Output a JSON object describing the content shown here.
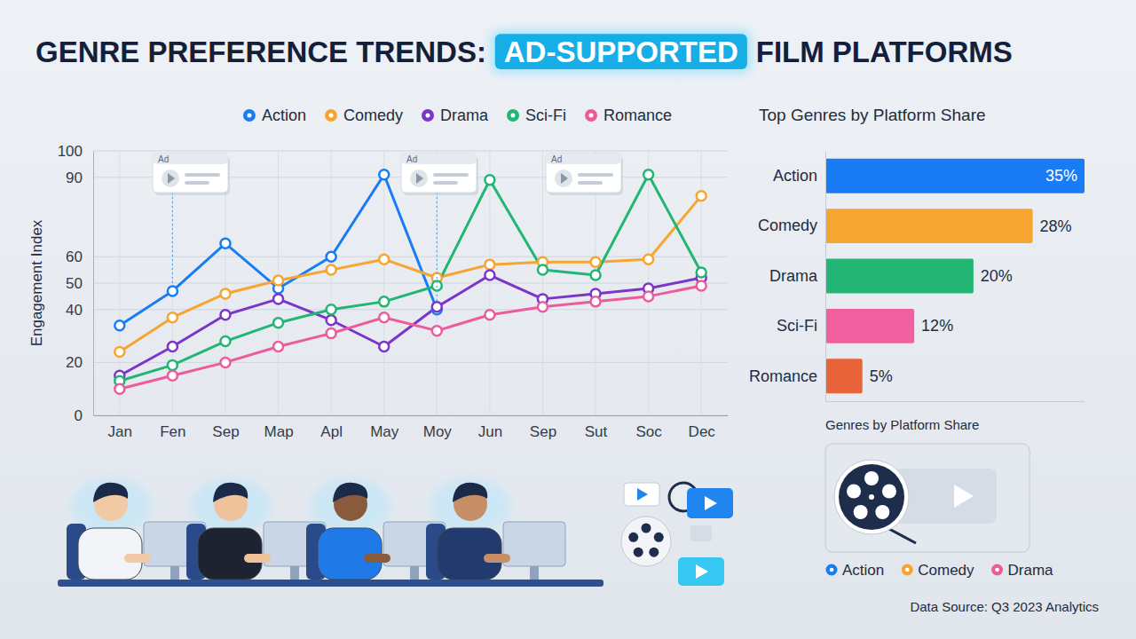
{
  "header": {
    "title": "GENRE PREFERENCE TRENDS:",
    "highlight": "AD-SUPPORTED",
    "title_end": "FILM PLATFORMS"
  },
  "chart_data": [
    {
      "type": "line",
      "y_label": "Engagement Index",
      "categories": [
        "Jan",
        "Fen",
        "Sep",
        "Map",
        "Apl",
        "May",
        "Moy",
        "Jun",
        "Sep",
        "Sut",
        "Soc",
        "Dec"
      ],
      "series": [
        {
          "name": "Action",
          "color": "#1a7cf5",
          "values": [
            34,
            47,
            65,
            48,
            60,
            91,
            40,
            null,
            null,
            null,
            null,
            null
          ]
        },
        {
          "name": "Comedy",
          "color": "#f6a530",
          "values": [
            24,
            37,
            46,
            51,
            55,
            59,
            52,
            57,
            58,
            58,
            59,
            83
          ]
        },
        {
          "name": "Drama",
          "color": "#7b35c9",
          "values": [
            15,
            26,
            38,
            44,
            36,
            26,
            41,
            53,
            44,
            46,
            48,
            52
          ]
        },
        {
          "name": "Sci-Fi",
          "color": "#22b573",
          "values": [
            13,
            19,
            28,
            35,
            40,
            43,
            49,
            89,
            55,
            53,
            91,
            54
          ]
        },
        {
          "name": "Romance",
          "color": "#ec5c9c",
          "values": [
            10,
            15,
            20,
            26,
            31,
            37,
            32,
            38,
            41,
            43,
            45,
            49
          ]
        }
      ],
      "ylim": [
        0,
        100
      ],
      "yticks": [
        0,
        20,
        40,
        50,
        60,
        90,
        100
      ],
      "grid": true,
      "legend": "top",
      "marker": "circle"
    },
    {
      "type": "bar",
      "title": "Top Genres by Platform Share",
      "orientation": "horizontal",
      "categories": [
        "Action",
        "Comedy",
        "Drama",
        "Sci-Fi",
        "Romance"
      ],
      "values": [
        35,
        28,
        20,
        12,
        5
      ],
      "value_labels": [
        "35%",
        "28%",
        "20%",
        "12%",
        "5%"
      ],
      "colors": [
        "#1a7cf5",
        "#f6a530",
        "#22b573",
        "#f0609e",
        "#e8623a"
      ],
      "data_labels": true,
      "xlim": [
        0,
        35
      ],
      "tick_labels": "y",
      "grid": false
    }
  ],
  "ad_card": {
    "label": "Ad"
  },
  "media_panel": {
    "title": "Genres by Platform Share",
    "legend": [
      {
        "name": "Action",
        "color": "#1a7cf5"
      },
      {
        "name": "Comedy",
        "color": "#f6a530"
      },
      {
        "name": "Drama",
        "color": "#ec5c9c"
      }
    ]
  },
  "source": "Data Source: Q3 2023 Analytics"
}
